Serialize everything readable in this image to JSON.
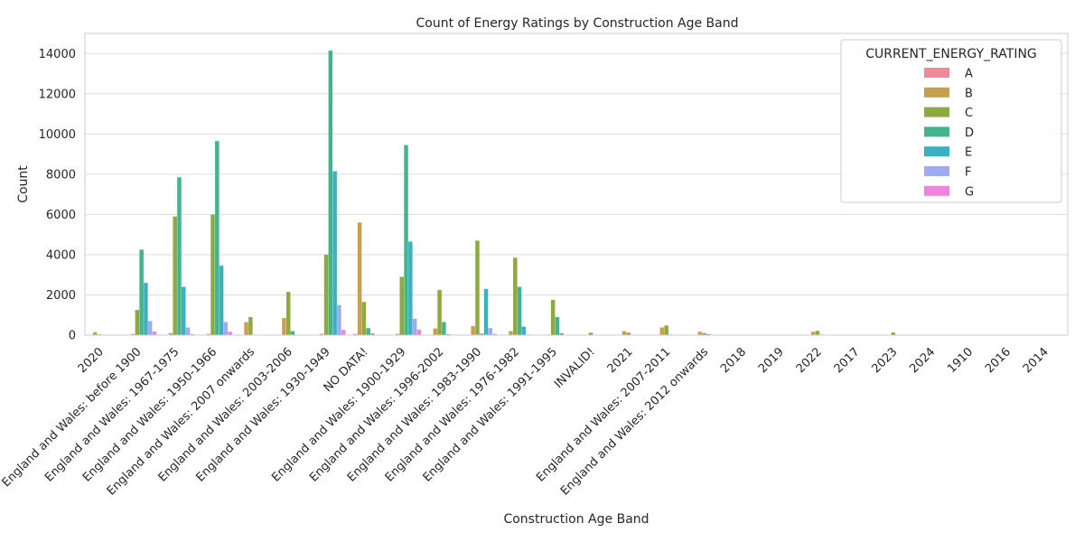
{
  "chart_data": {
    "type": "bar",
    "title": "Count of Energy Ratings by Construction Age Band",
    "xlabel": "Construction Age Band",
    "ylabel": "Count",
    "ylim": [
      0,
      15000
    ],
    "yticks": [
      0,
      2000,
      4000,
      6000,
      8000,
      10000,
      12000,
      14000
    ],
    "grid": true,
    "legend": {
      "title": "CURRENT_ENERGY_RATING",
      "placement": "top-right"
    },
    "categories": [
      "2020",
      "England and Wales: before 1900",
      "England and Wales: 1967-1975",
      "England and Wales: 1950-1966",
      "England and Wales: 2007 onwards",
      "England and Wales: 2003-2006",
      "England and Wales: 1930-1949",
      "NO DATA!",
      "England and Wales: 1900-1929",
      "England and Wales: 1996-2002",
      "England and Wales: 1983-1990",
      "England and Wales: 1976-1982",
      "England and Wales: 1991-1995",
      "INVALID!",
      "2021",
      "England and Wales: 2007-2011",
      "England and Wales: 2012 onwards",
      "2018",
      "2019",
      "2022",
      "2017",
      "2023",
      "2024",
      "1910",
      "2016",
      "2014"
    ],
    "series": [
      {
        "name": "A",
        "color": "#f08a99",
        "values": [
          10,
          10,
          20,
          10,
          20,
          10,
          10,
          60,
          10,
          10,
          10,
          10,
          10,
          0,
          10,
          30,
          10,
          0,
          0,
          10,
          0,
          0,
          0,
          0,
          0,
          0
        ]
      },
      {
        "name": "B",
        "color": "#c8a04d",
        "values": [
          150,
          60,
          100,
          60,
          650,
          850,
          60,
          5600,
          60,
          330,
          450,
          200,
          30,
          20,
          200,
          380,
          170,
          10,
          10,
          170,
          10,
          10,
          5,
          0,
          5,
          5
        ]
      },
      {
        "name": "C",
        "color": "#8ea93f",
        "values": [
          40,
          1250,
          5900,
          6000,
          900,
          2150,
          4000,
          1650,
          2900,
          2250,
          4700,
          3850,
          1750,
          120,
          120,
          480,
          100,
          20,
          20,
          210,
          10,
          130,
          10,
          5,
          5,
          5
        ]
      },
      {
        "name": "D",
        "color": "#44b48c",
        "values": [
          10,
          4250,
          7850,
          9650,
          20,
          200,
          14150,
          350,
          9450,
          650,
          70,
          2400,
          900,
          20,
          20,
          30,
          50,
          5,
          5,
          30,
          5,
          10,
          5,
          10,
          5,
          5
        ]
      },
      {
        "name": "E",
        "color": "#3cb0c0",
        "values": [
          5,
          2600,
          2400,
          3450,
          5,
          20,
          8150,
          80,
          4650,
          40,
          2300,
          420,
          90,
          10,
          5,
          5,
          10,
          5,
          5,
          10,
          5,
          5,
          5,
          5,
          5,
          5
        ]
      },
      {
        "name": "F",
        "color": "#a0aaf0",
        "values": [
          5,
          700,
          380,
          650,
          5,
          10,
          1500,
          20,
          820,
          10,
          350,
          30,
          20,
          5,
          5,
          5,
          5,
          5,
          5,
          5,
          5,
          5,
          5,
          5,
          5,
          5
        ]
      },
      {
        "name": "G",
        "color": "#ee84e0",
        "values": [
          5,
          180,
          50,
          170,
          5,
          5,
          260,
          10,
          280,
          5,
          60,
          10,
          5,
          5,
          5,
          5,
          5,
          5,
          5,
          5,
          5,
          5,
          5,
          5,
          5,
          5
        ]
      }
    ]
  }
}
